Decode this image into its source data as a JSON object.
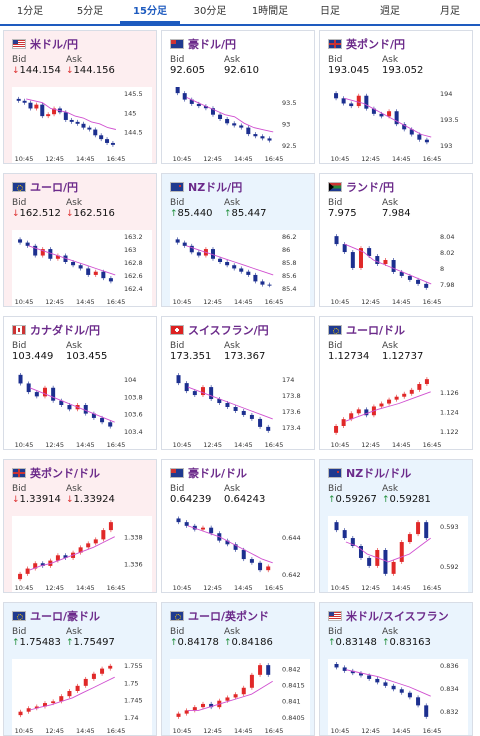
{
  "tabs": [
    {
      "label": "1分足",
      "active": false
    },
    {
      "label": "5分足",
      "active": false
    },
    {
      "label": "15分足",
      "active": true
    },
    {
      "label": "30分足",
      "active": false
    },
    {
      "label": "1時間足",
      "active": false
    },
    {
      "label": "日足",
      "active": false
    },
    {
      "label": "週足",
      "active": false
    },
    {
      "label": "月足",
      "active": false
    }
  ],
  "bid_label": "Bid",
  "ask_label": "Ask",
  "x_ticks": [
    "10:45",
    "12:45",
    "14:45",
    "16:45"
  ],
  "colors": {
    "up_bar": "#e02828",
    "down_bar": "#1c2f8f",
    "ma_line": "#d050d0",
    "up_arrow": "#1e8f3a",
    "down_arrow": "#d33",
    "title": "#6b2a8a",
    "active_tab": "#1e5bbf",
    "down_bg": "#fdeef0",
    "up_bg": "#eaf4fd"
  },
  "cards": [
    {
      "name": "米ドル/円",
      "flag": "us",
      "direction": "down",
      "bid": "144.154",
      "ask": "144.156",
      "y_ticks": [
        "145.5",
        "145",
        "144.5"
      ],
      "chart_data": {
        "type": "candlestick",
        "close": [
          145.3,
          145.25,
          145.1,
          145.2,
          144.9,
          144.95,
          145.1,
          145.0,
          144.8,
          144.75,
          144.7,
          144.6,
          144.55,
          144.4,
          144.3,
          144.2,
          144.15
        ],
        "ma": [
          145.35,
          145.3,
          145.25,
          145.1,
          145.05,
          145.0,
          144.9,
          144.85,
          144.75,
          144.7,
          144.6,
          144.55
        ]
      }
    },
    {
      "name": "豪ドル/円",
      "flag": "au",
      "direction": "neutral",
      "bid": "92.605",
      "ask": "92.610",
      "y_ticks": [
        "93.5",
        "93",
        "92.5"
      ],
      "chart_data": {
        "type": "candlestick",
        "close": [
          93.7,
          93.55,
          93.45,
          93.4,
          93.35,
          93.2,
          93.1,
          93.0,
          92.95,
          92.9,
          92.75,
          92.7,
          92.65,
          92.6
        ],
        "ma": [
          93.6,
          93.5,
          93.4,
          93.3,
          93.2,
          93.15,
          93.0,
          92.9,
          92.85,
          92.8
        ]
      }
    },
    {
      "name": "英ポンド/円",
      "flag": "gb",
      "direction": "neutral",
      "bid": "193.045",
      "ask": "193.052",
      "y_ticks": [
        "194",
        "193.5",
        "193"
      ],
      "chart_data": {
        "type": "candlestick",
        "close": [
          193.9,
          193.8,
          193.75,
          193.95,
          193.7,
          193.6,
          193.55,
          193.65,
          193.4,
          193.3,
          193.2,
          193.1,
          193.05
        ],
        "ma": [
          193.9,
          193.85,
          193.8,
          193.7,
          193.6,
          193.5,
          193.4,
          193.3,
          193.2,
          193.15
        ]
      }
    },
    {
      "name": "ユーロ/円",
      "flag": "eu",
      "direction": "down",
      "bid": "162.512",
      "ask": "162.516",
      "y_ticks": [
        "163.2",
        "163",
        "162.8",
        "162.6",
        "162.4"
      ],
      "chart_data": {
        "type": "candlestick",
        "close": [
          163.1,
          163.05,
          162.9,
          163.0,
          162.85,
          162.9,
          162.8,
          162.75,
          162.7,
          162.6,
          162.65,
          162.55,
          162.5
        ],
        "ma": [
          163.05,
          163.0,
          162.95,
          162.9,
          162.85,
          162.8,
          162.75,
          162.7,
          162.65,
          162.6
        ]
      }
    },
    {
      "name": "NZドル/円",
      "flag": "nz",
      "direction": "up",
      "bid": "85.440",
      "ask": "85.447",
      "y_ticks": [
        "86.2",
        "86",
        "85.8",
        "85.6",
        "85.4"
      ],
      "chart_data": {
        "type": "candlestick",
        "close": [
          86.1,
          86.05,
          85.95,
          85.9,
          86.0,
          85.85,
          85.8,
          85.75,
          85.7,
          85.65,
          85.6,
          85.5,
          85.45,
          85.44
        ],
        "ma": [
          86.05,
          86.0,
          85.95,
          85.9,
          85.85,
          85.8,
          85.75,
          85.7,
          85.65,
          85.6
        ]
      }
    },
    {
      "name": "ランド/円",
      "flag": "za",
      "direction": "neutral",
      "bid": "7.975",
      "ask": "7.984",
      "y_ticks": [
        "8.04",
        "8.02",
        "8",
        "7.98"
      ],
      "chart_data": {
        "type": "candlestick",
        "close": [
          8.03,
          8.02,
          8.0,
          8.025,
          8.015,
          8.005,
          8.01,
          7.995,
          7.99,
          7.985,
          7.98,
          7.975
        ],
        "ma": [
          8.03,
          8.025,
          8.02,
          8.01,
          8.005,
          8.0,
          7.995,
          7.99,
          7.985,
          7.98
        ]
      }
    },
    {
      "name": "カナダドル/円",
      "flag": "ca",
      "direction": "neutral",
      "bid": "103.449",
      "ask": "103.455",
      "y_ticks": [
        "104",
        "103.8",
        "103.6",
        "103.4"
      ],
      "chart_data": {
        "type": "candlestick",
        "close": [
          103.95,
          103.85,
          103.8,
          103.9,
          103.75,
          103.7,
          103.65,
          103.7,
          103.6,
          103.55,
          103.5,
          103.45
        ],
        "ma": [
          103.9,
          103.85,
          103.8,
          103.75,
          103.7,
          103.65,
          103.6,
          103.55,
          103.5
        ]
      }
    },
    {
      "name": "スイスフラン/円",
      "flag": "ch",
      "direction": "neutral",
      "bid": "173.351",
      "ask": "173.367",
      "y_ticks": [
        "174",
        "173.8",
        "173.6",
        "173.4"
      ],
      "chart_data": {
        "type": "candlestick",
        "close": [
          173.95,
          173.85,
          173.8,
          173.9,
          173.75,
          173.7,
          173.65,
          173.6,
          173.55,
          173.5,
          173.4,
          173.35
        ],
        "ma": [
          173.9,
          173.85,
          173.8,
          173.75,
          173.7,
          173.65,
          173.6,
          173.55,
          173.5
        ]
      }
    },
    {
      "name": "ユーロ/ドル",
      "flag": "eu",
      "direction": "neutral",
      "bid": "1.12734",
      "ask": "1.12737",
      "y_ticks": [
        "1.126",
        "1.124",
        "1.122"
      ],
      "chart_data": {
        "type": "candlestick",
        "close": [
          1.1225,
          1.1232,
          1.1238,
          1.1242,
          1.1236,
          1.1245,
          1.1248,
          1.1252,
          1.1255,
          1.1258,
          1.1262,
          1.1268,
          1.1273
        ],
        "ma": [
          1.123,
          1.1234,
          1.1238,
          1.1242,
          1.1245,
          1.1248,
          1.1252,
          1.1256,
          1.126
        ]
      }
    },
    {
      "name": "英ポンド/ドル",
      "flag": "gb",
      "direction": "down",
      "bid": "1.33914",
      "ask": "1.33924",
      "y_ticks": [
        "1.338",
        "1.336"
      ],
      "chart_data": {
        "type": "candlestick",
        "close": [
          1.3352,
          1.3356,
          1.336,
          1.3358,
          1.3362,
          1.3366,
          1.3364,
          1.3368,
          1.3372,
          1.3375,
          1.3378,
          1.3385,
          1.3391
        ],
        "ma": [
          1.3355,
          1.3358,
          1.336,
          1.3363,
          1.3366,
          1.3369,
          1.3372,
          1.3376,
          1.338
        ]
      }
    },
    {
      "name": "豪ドル/ドル",
      "flag": "au",
      "direction": "neutral",
      "bid": "0.64239",
      "ask": "0.64243",
      "y_ticks": [
        "0.644",
        "0.642"
      ],
      "chart_data": {
        "type": "candlestick",
        "close": [
          0.6448,
          0.6446,
          0.6444,
          0.6445,
          0.6442,
          0.6438,
          0.6436,
          0.6433,
          0.6428,
          0.6426,
          0.6422,
          0.6424
        ],
        "ma": [
          0.6446,
          0.6444,
          0.6442,
          0.644,
          0.6437,
          0.6434,
          0.6431,
          0.6428,
          0.6426
        ]
      }
    },
    {
      "name": "NZドル/ドル",
      "flag": "nz",
      "direction": "up",
      "bid": "0.59267",
      "ask": "0.59281",
      "y_ticks": [
        "0.593",
        "0.592"
      ],
      "chart_data": {
        "type": "candlestick",
        "close": [
          0.5929,
          0.5927,
          0.5925,
          0.5922,
          0.592,
          0.5924,
          0.5918,
          0.5921,
          0.5926,
          0.5928,
          0.5931,
          0.5927
        ],
        "ma": [
          0.5926,
          0.5925,
          0.5923,
          0.5922,
          0.5921,
          0.5922,
          0.5923,
          0.5925,
          0.5927
        ]
      }
    },
    {
      "name": "ユーロ/豪ドル",
      "flag": "eu",
      "direction": "up",
      "bid": "1.75483",
      "ask": "1.75497",
      "y_ticks": [
        "1.755",
        "1.75",
        "1.745",
        "1.74"
      ],
      "chart_data": {
        "type": "candlestick",
        "close": [
          1.7415,
          1.7425,
          1.743,
          1.744,
          1.7445,
          1.746,
          1.7475,
          1.749,
          1.751,
          1.7525,
          1.754,
          1.7548
        ],
        "ma": [
          1.742,
          1.7428,
          1.7435,
          1.7445,
          1.7455,
          1.747,
          1.7485,
          1.75,
          1.7515
        ]
      }
    },
    {
      "name": "ユーロ/英ポンド",
      "flag": "eu",
      "direction": "up",
      "bid": "0.84178",
      "ask": "0.84186",
      "y_ticks": [
        "0.842",
        "0.8415",
        "0.841",
        "0.8405"
      ],
      "chart_data": {
        "type": "candlestick",
        "close": [
          0.8406,
          0.8407,
          0.8408,
          0.8409,
          0.8408,
          0.841,
          0.8411,
          0.8412,
          0.8414,
          0.8418,
          0.8421,
          0.8418
        ],
        "ma": [
          0.8407,
          0.8407,
          0.8408,
          0.8409,
          0.841,
          0.8411,
          0.8412,
          0.8414,
          0.8416
        ]
      }
    },
    {
      "name": "米ドル/スイスフラン",
      "flag": "us",
      "direction": "up",
      "bid": "0.83148",
      "ask": "0.83163",
      "y_ticks": [
        "0.836",
        "0.834",
        "0.832"
      ],
      "chart_data": {
        "type": "candlestick",
        "close": [
          0.8358,
          0.8355,
          0.8353,
          0.8351,
          0.8348,
          0.8345,
          0.8342,
          0.8339,
          0.8336,
          0.8332,
          0.8325,
          0.8315
        ],
        "ma": [
          0.8356,
          0.8354,
          0.8352,
          0.835,
          0.8347,
          0.8344,
          0.8341,
          0.8337,
          0.8333
        ]
      }
    }
  ]
}
